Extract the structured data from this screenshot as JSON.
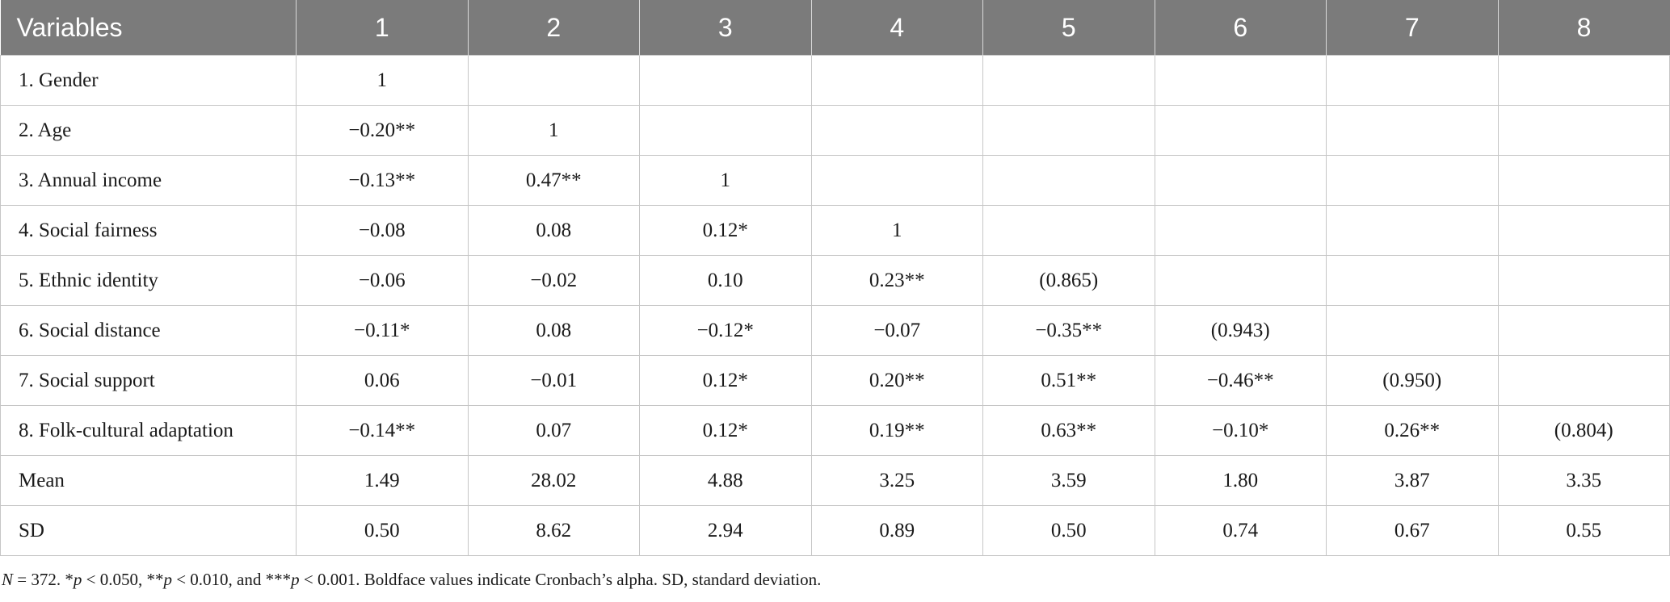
{
  "table": {
    "header": [
      "Variables",
      "1",
      "2",
      "3",
      "4",
      "5",
      "6",
      "7",
      "8"
    ],
    "rows": [
      [
        "1.  Gender",
        "1",
        "",
        "",
        "",
        "",
        "",
        "",
        ""
      ],
      [
        "2.  Age",
        "−0.20**",
        "1",
        "",
        "",
        "",
        "",
        "",
        ""
      ],
      [
        "3.  Annual income",
        "−0.13**",
        "0.47**",
        "1",
        "",
        "",
        "",
        "",
        ""
      ],
      [
        "4.  Social fairness",
        "−0.08",
        "0.08",
        "0.12*",
        "1",
        "",
        "",
        "",
        ""
      ],
      [
        "5.  Ethnic identity",
        "−0.06",
        "−0.02",
        "0.10",
        "0.23**",
        "(0.865)",
        "",
        "",
        ""
      ],
      [
        "6.  Social distance",
        "−0.11*",
        "0.08",
        "−0.12*",
        "−0.07",
        "−0.35**",
        "(0.943)",
        "",
        ""
      ],
      [
        "7.  Social support",
        "0.06",
        "−0.01",
        "0.12*",
        "0.20**",
        "0.51**",
        "−0.46**",
        "(0.950)",
        ""
      ],
      [
        "8.  Folk-cultural adaptation",
        "−0.14**",
        "0.07",
        "0.12*",
        "0.19**",
        "0.63**",
        "−0.10*",
        "0.26**",
        "(0.804)"
      ],
      [
        "Mean",
        "1.49",
        "28.02",
        "4.88",
        "3.25",
        "3.59",
        "1.80",
        "3.87",
        "3.35"
      ],
      [
        "SD",
        "0.50",
        "8.62",
        "2.94",
        "0.89",
        "0.50",
        "0.74",
        "0.67",
        "0.55"
      ]
    ]
  },
  "note": {
    "n_label": "N",
    "n_rest": " = 372. *",
    "p1": "p",
    "t1": " < 0.050, **",
    "p2": "p",
    "t2": " < 0.010, and ***",
    "p3": "p",
    "t3": " < 0.001. Boldface values indicate Cronbach’s alpha. SD, standard deviation."
  }
}
